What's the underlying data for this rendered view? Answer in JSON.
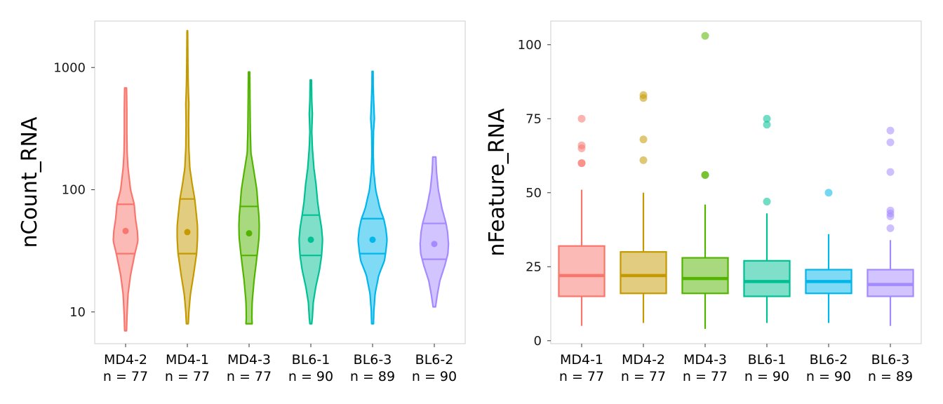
{
  "chart_data": [
    {
      "type": "violin",
      "ylabel": "nCount_RNA",
      "y_scale": "log10",
      "ylim": [
        5.5,
        2400
      ],
      "y_ticks": [
        10,
        100,
        1000
      ],
      "y_tick_labels": [
        "10",
        "100",
        "1000"
      ],
      "grid": false,
      "categories": [
        {
          "name": "MD4-2",
          "n_label": "n = 77"
        },
        {
          "name": "MD4-1",
          "n_label": "n = 77"
        },
        {
          "name": "MD4-3",
          "n_label": "n = 77"
        },
        {
          "name": "BL6-1",
          "n_label": "n = 90"
        },
        {
          "name": "BL6-3",
          "n_label": "n = 89"
        },
        {
          "name": "BL6-2",
          "n_label": "n = 90"
        }
      ],
      "series": [
        {
          "name": "MD4-2",
          "color": "#F8766D",
          "q1": 30,
          "q3": 76,
          "mean": 46,
          "profile": [
            [
              7,
              0.03
            ],
            [
              10,
              0.05
            ],
            [
              14,
              0.08
            ],
            [
              20,
              0.16
            ],
            [
              30,
              0.3
            ],
            [
              38,
              0.4
            ],
            [
              46,
              0.38
            ],
            [
              58,
              0.32
            ],
            [
              76,
              0.28
            ],
            [
              100,
              0.16
            ],
            [
              150,
              0.08
            ],
            [
              200,
              0.05
            ],
            [
              300,
              0.04
            ],
            [
              450,
              0.04
            ],
            [
              600,
              0.035
            ],
            [
              680,
              0.03
            ]
          ]
        },
        {
          "name": "MD4-1",
          "color": "#C49A00",
          "q1": 30,
          "q3": 84,
          "mean": 45,
          "profile": [
            [
              8,
              0.03
            ],
            [
              10,
              0.05
            ],
            [
              14,
              0.1
            ],
            [
              20,
              0.2
            ],
            [
              30,
              0.3
            ],
            [
              40,
              0.33
            ],
            [
              50,
              0.33
            ],
            [
              60,
              0.3
            ],
            [
              84,
              0.24
            ],
            [
              110,
              0.16
            ],
            [
              150,
              0.08
            ],
            [
              220,
              0.05
            ],
            [
              350,
              0.04
            ],
            [
              500,
              0.05
            ],
            [
              700,
              0.03
            ],
            [
              1000,
              0.02
            ],
            [
              1400,
              0.015
            ],
            [
              2000,
              0.01
            ]
          ]
        },
        {
          "name": "MD4-3",
          "color": "#53B400",
          "q1": 29,
          "q3": 73,
          "mean": 44,
          "profile": [
            [
              8,
              0.1
            ],
            [
              9,
              0.09
            ],
            [
              12,
              0.1
            ],
            [
              18,
              0.16
            ],
            [
              29,
              0.26
            ],
            [
              40,
              0.32
            ],
            [
              50,
              0.33
            ],
            [
              60,
              0.32
            ],
            [
              73,
              0.29
            ],
            [
              100,
              0.25
            ],
            [
              150,
              0.14
            ],
            [
              200,
              0.06
            ],
            [
              300,
              0.04
            ],
            [
              500,
              0.03
            ],
            [
              700,
              0.025
            ],
            [
              920,
              0.02
            ]
          ]
        },
        {
          "name": "BL6-1",
          "color": "#00C094",
          "q1": 29,
          "q3": 62,
          "mean": 39,
          "profile": [
            [
              8,
              0.03
            ],
            [
              9,
              0.05
            ],
            [
              12,
              0.08
            ],
            [
              16,
              0.16
            ],
            [
              22,
              0.28
            ],
            [
              29,
              0.35
            ],
            [
              39,
              0.38
            ],
            [
              48,
              0.35
            ],
            [
              62,
              0.28
            ],
            [
              80,
              0.22
            ],
            [
              110,
              0.17
            ],
            [
              150,
              0.1
            ],
            [
              220,
              0.05
            ],
            [
              300,
              0.03
            ],
            [
              420,
              0.05
            ],
            [
              550,
              0.03
            ],
            [
              790,
              0.02
            ]
          ]
        },
        {
          "name": "BL6-3",
          "color": "#00B6EB",
          "q1": 30,
          "q3": 58,
          "mean": 39,
          "profile": [
            [
              8,
              0.03
            ],
            [
              10,
              0.04
            ],
            [
              14,
              0.08
            ],
            [
              20,
              0.2
            ],
            [
              26,
              0.38
            ],
            [
              30,
              0.42
            ],
            [
              39,
              0.47
            ],
            [
              48,
              0.43
            ],
            [
              58,
              0.36
            ],
            [
              70,
              0.24
            ],
            [
              100,
              0.1
            ],
            [
              140,
              0.04
            ],
            [
              200,
              0.02
            ],
            [
              300,
              0.03
            ],
            [
              380,
              0.06
            ],
            [
              500,
              0.04
            ],
            [
              700,
              0.02
            ],
            [
              930,
              0.015
            ]
          ]
        },
        {
          "name": "BL6-2",
          "color": "#A58AFF",
          "q1": 27,
          "q3": 53,
          "mean": 36,
          "profile": [
            [
              11,
              0.04
            ],
            [
              12,
              0.06
            ],
            [
              14,
              0.1
            ],
            [
              18,
              0.18
            ],
            [
              24,
              0.34
            ],
            [
              30,
              0.44
            ],
            [
              36,
              0.46
            ],
            [
              45,
              0.43
            ],
            [
              53,
              0.38
            ],
            [
              70,
              0.25
            ],
            [
              100,
              0.13
            ],
            [
              140,
              0.07
            ],
            [
              185,
              0.05
            ]
          ]
        }
      ]
    },
    {
      "type": "box",
      "ylabel": "nFeature_RNA",
      "ylim": [
        -1,
        108
      ],
      "y_ticks": [
        0,
        25,
        50,
        75,
        100
      ],
      "y_tick_labels": [
        "0",
        "25",
        "50",
        "75",
        "100"
      ],
      "grid": false,
      "categories": [
        {
          "name": "MD4-1",
          "n_label": "n = 77"
        },
        {
          "name": "MD4-2",
          "n_label": "n = 77"
        },
        {
          "name": "MD4-3",
          "n_label": "n = 77"
        },
        {
          "name": "BL6-1",
          "n_label": "n = 90"
        },
        {
          "name": "BL6-2",
          "n_label": "n = 90"
        },
        {
          "name": "BL6-3",
          "n_label": "n = 89"
        }
      ],
      "series": [
        {
          "name": "MD4-1",
          "color": "#F8766D",
          "min": 5,
          "q1": 15,
          "median": 22,
          "q3": 32,
          "max": 51,
          "outliers": [
            60,
            60,
            65,
            66,
            75
          ]
        },
        {
          "name": "MD4-2",
          "color": "#C49A00",
          "min": 6,
          "q1": 16,
          "median": 22,
          "q3": 30,
          "max": 50,
          "outliers": [
            61,
            68,
            82,
            83
          ]
        },
        {
          "name": "MD4-3",
          "color": "#53B400",
          "min": 4,
          "q1": 16,
          "median": 21,
          "q3": 28,
          "max": 46,
          "outliers": [
            56,
            56,
            103
          ]
        },
        {
          "name": "BL6-1",
          "color": "#00C094",
          "min": 6,
          "q1": 15,
          "median": 20,
          "q3": 27,
          "max": 43,
          "outliers": [
            47,
            73,
            75
          ]
        },
        {
          "name": "BL6-2",
          "color": "#00B6EB",
          "min": 6,
          "q1": 16,
          "median": 20,
          "q3": 24,
          "max": 36,
          "outliers": [
            50
          ]
        },
        {
          "name": "BL6-3",
          "color": "#A58AFF",
          "min": 5,
          "q1": 15,
          "median": 19,
          "q3": 24,
          "max": 34,
          "outliers": [
            38,
            42,
            43,
            44,
            57,
            67,
            71
          ]
        }
      ]
    }
  ]
}
